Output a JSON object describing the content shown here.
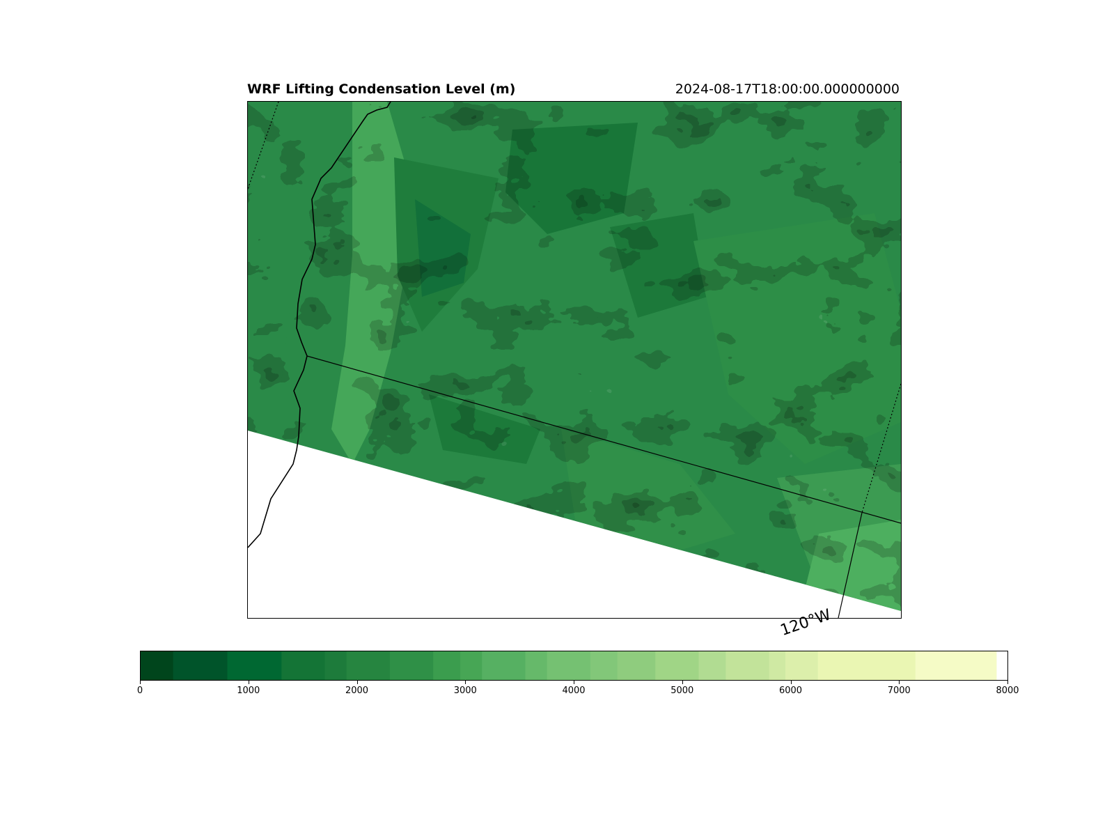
{
  "title": "WRF Lifting Condensation Level (m)",
  "timestamp": "2024-08-17T18:00:00.000000000",
  "map": {
    "longitude_label": "120°W",
    "features": [
      "coastline",
      "state-border",
      "longitude-gridline"
    ],
    "background_color": "#2a8a48"
  },
  "colorbar": {
    "min": 0,
    "max": 8000,
    "tick_labels": [
      "0",
      "1000",
      "2000",
      "3000",
      "4000",
      "5000",
      "6000",
      "7000",
      "8000"
    ],
    "colormap": "YlGn_r"
  },
  "chart_data": {
    "type": "heatmap",
    "title": "WRF Lifting Condensation Level (m)",
    "time": "2024-08-17T18:00:00.000000000",
    "value_range": [
      0,
      8000
    ],
    "levels": [
      0,
      300,
      800,
      1300,
      1700,
      1900,
      2300,
      2700,
      2950,
      3150,
      3550,
      3750,
      4150,
      4400,
      4750,
      5150,
      5400,
      5800,
      5950,
      6250,
      7150,
      7900,
      8000
    ],
    "level_colors": [
      "#00451c",
      "#00542a",
      "#006832",
      "#147436",
      "#1d7b3b",
      "#268540",
      "#2f9047",
      "#3b9d4e",
      "#47a655",
      "#56b062",
      "#66b96a",
      "#75c172",
      "#82c779",
      "#8fcc7e",
      "#a0d586",
      "#b1dc92",
      "#c2e39a",
      "#cfe9a3",
      "#dcefab",
      "#eaf6b3",
      "#f5fbc6",
      "#ffffff"
    ]
  }
}
